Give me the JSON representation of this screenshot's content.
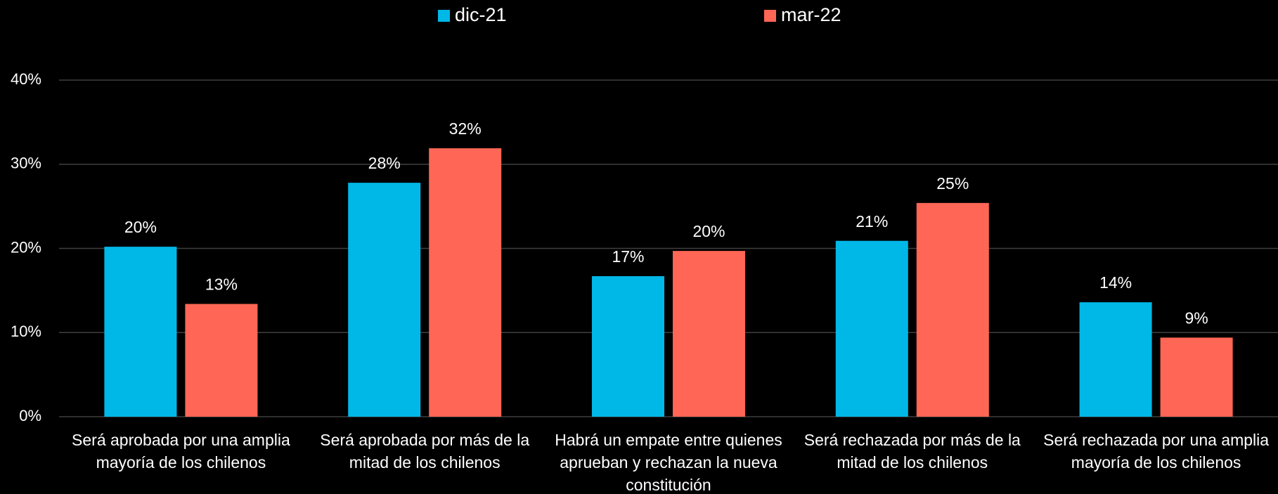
{
  "chart_data": {
    "type": "bar",
    "categories": [
      [
        "Será aprobada por una amplia",
        "mayoría de los chilenos"
      ],
      [
        "Será aprobada por más de la",
        "mitad de los chilenos"
      ],
      [
        "Habrá un empate entre quienes",
        "aprueban y rechazan la nueva",
        "constitución"
      ],
      [
        "Será rechazada por más de la",
        "mitad de los chilenos"
      ],
      [
        "Será rechazada por una amplia",
        "mayoría de los chilenos"
      ]
    ],
    "series": [
      {
        "name": "dic-21",
        "color": "#00b8e8",
        "values": [
          20.2,
          27.8,
          16.7,
          20.9,
          13.6
        ],
        "value_labels": [
          "20%",
          "28%",
          "17%",
          "21%",
          "14%"
        ]
      },
      {
        "name": "mar-22",
        "color": "#ff6655",
        "values": [
          13.4,
          31.9,
          19.7,
          25.4,
          9.4
        ],
        "value_labels": [
          "13%",
          "32%",
          "20%",
          "25%",
          "9%"
        ]
      }
    ],
    "ylim": [
      0,
      40
    ],
    "yticks": [
      {
        "value": 0,
        "label": "0%"
      },
      {
        "value": 10,
        "label": "10%"
      },
      {
        "value": 20,
        "label": "20%"
      },
      {
        "value": 30,
        "label": "30%"
      },
      {
        "value": 40,
        "label": "40%"
      }
    ],
    "grid": true,
    "legend": "top"
  }
}
